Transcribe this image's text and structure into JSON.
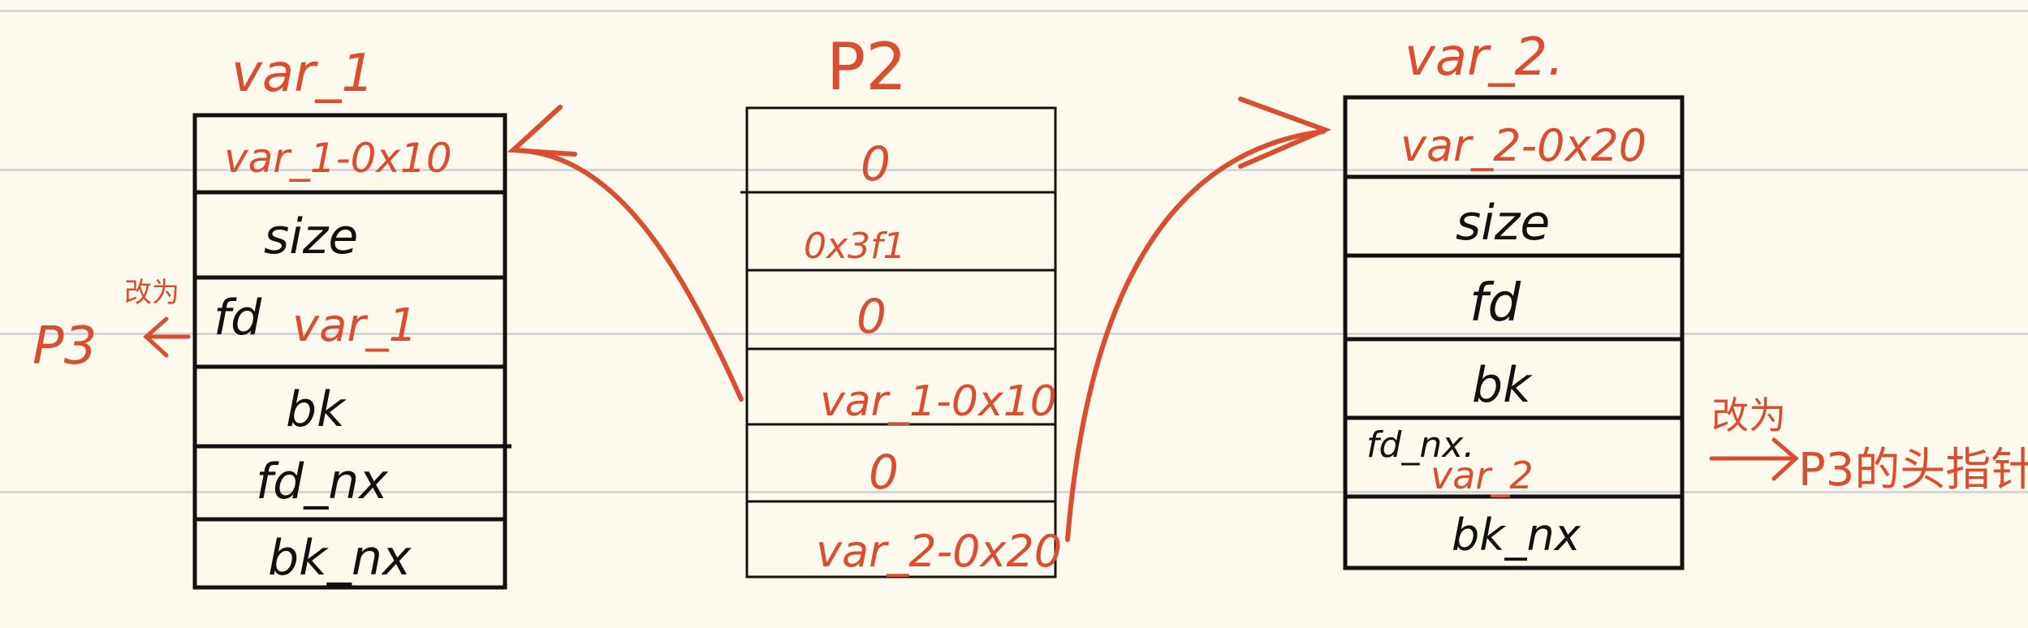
{
  "colors": {
    "background": "#fdf9ec",
    "ink": "#111111",
    "annotation": "#d94e32",
    "rule": "#d6d6d6"
  },
  "var1": {
    "title": "var_1",
    "rows": [
      "var_1-0x10",
      "size",
      "fd",
      "bk",
      "fd_nx",
      "bk_nx"
    ],
    "fd_value": "var_1"
  },
  "p2": {
    "title": "P2",
    "rows": [
      "0",
      "0x3f1",
      "0",
      "var_1-0x10",
      "0",
      "var_2-0x20"
    ]
  },
  "var2": {
    "title": "var_2.",
    "rows": [
      "var_2-0x20",
      "size",
      "fd",
      "bk",
      "fd_nx.",
      "bk_nx"
    ],
    "fd_nx_value": "var_2"
  },
  "annotations": {
    "left_change_label": "改为",
    "left_target": "P3",
    "right_change_label": "改为",
    "right_target": "P3的头指针"
  }
}
